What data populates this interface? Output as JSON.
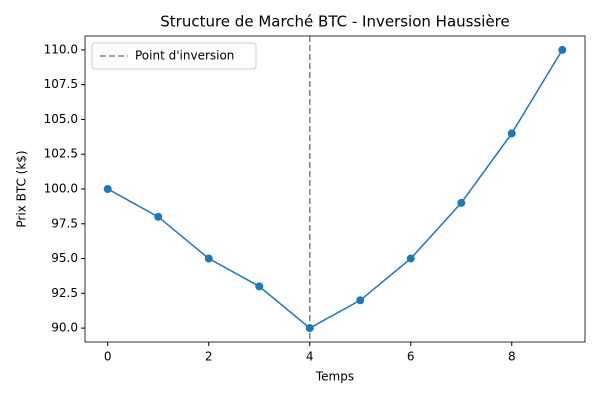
{
  "chart_data": {
    "type": "line",
    "title": "Structure de Marché BTC - Inversion Haussière",
    "xlabel": "Temps",
    "ylabel": "Prix BTC (k$)",
    "x": [
      0,
      1,
      2,
      3,
      4,
      5,
      6,
      7,
      8,
      9
    ],
    "series": [
      {
        "name": "Prix",
        "color": "#1f77b4",
        "values": [
          100,
          98,
          95,
          93,
          90,
          92,
          95,
          99,
          104,
          110
        ]
      }
    ],
    "vlines": [
      {
        "x": 4,
        "label": "Point d'inversion",
        "color": "#808080"
      }
    ],
    "xlim": [
      -0.45,
      9.45
    ],
    "ylim": [
      89.0,
      111.0
    ],
    "xticks": [
      0,
      2,
      4,
      6,
      8
    ],
    "yticks": [
      {
        "value": 90,
        "label": "90.0"
      },
      92.5,
      {
        "value": 95,
        "label": "95.0"
      },
      97.5,
      {
        "value": 100,
        "label": "100.0"
      },
      102.5,
      {
        "value": 105,
        "label": "105.0"
      },
      107.5,
      {
        "value": 110,
        "label": "110.0"
      }
    ],
    "legend": "upper left"
  }
}
